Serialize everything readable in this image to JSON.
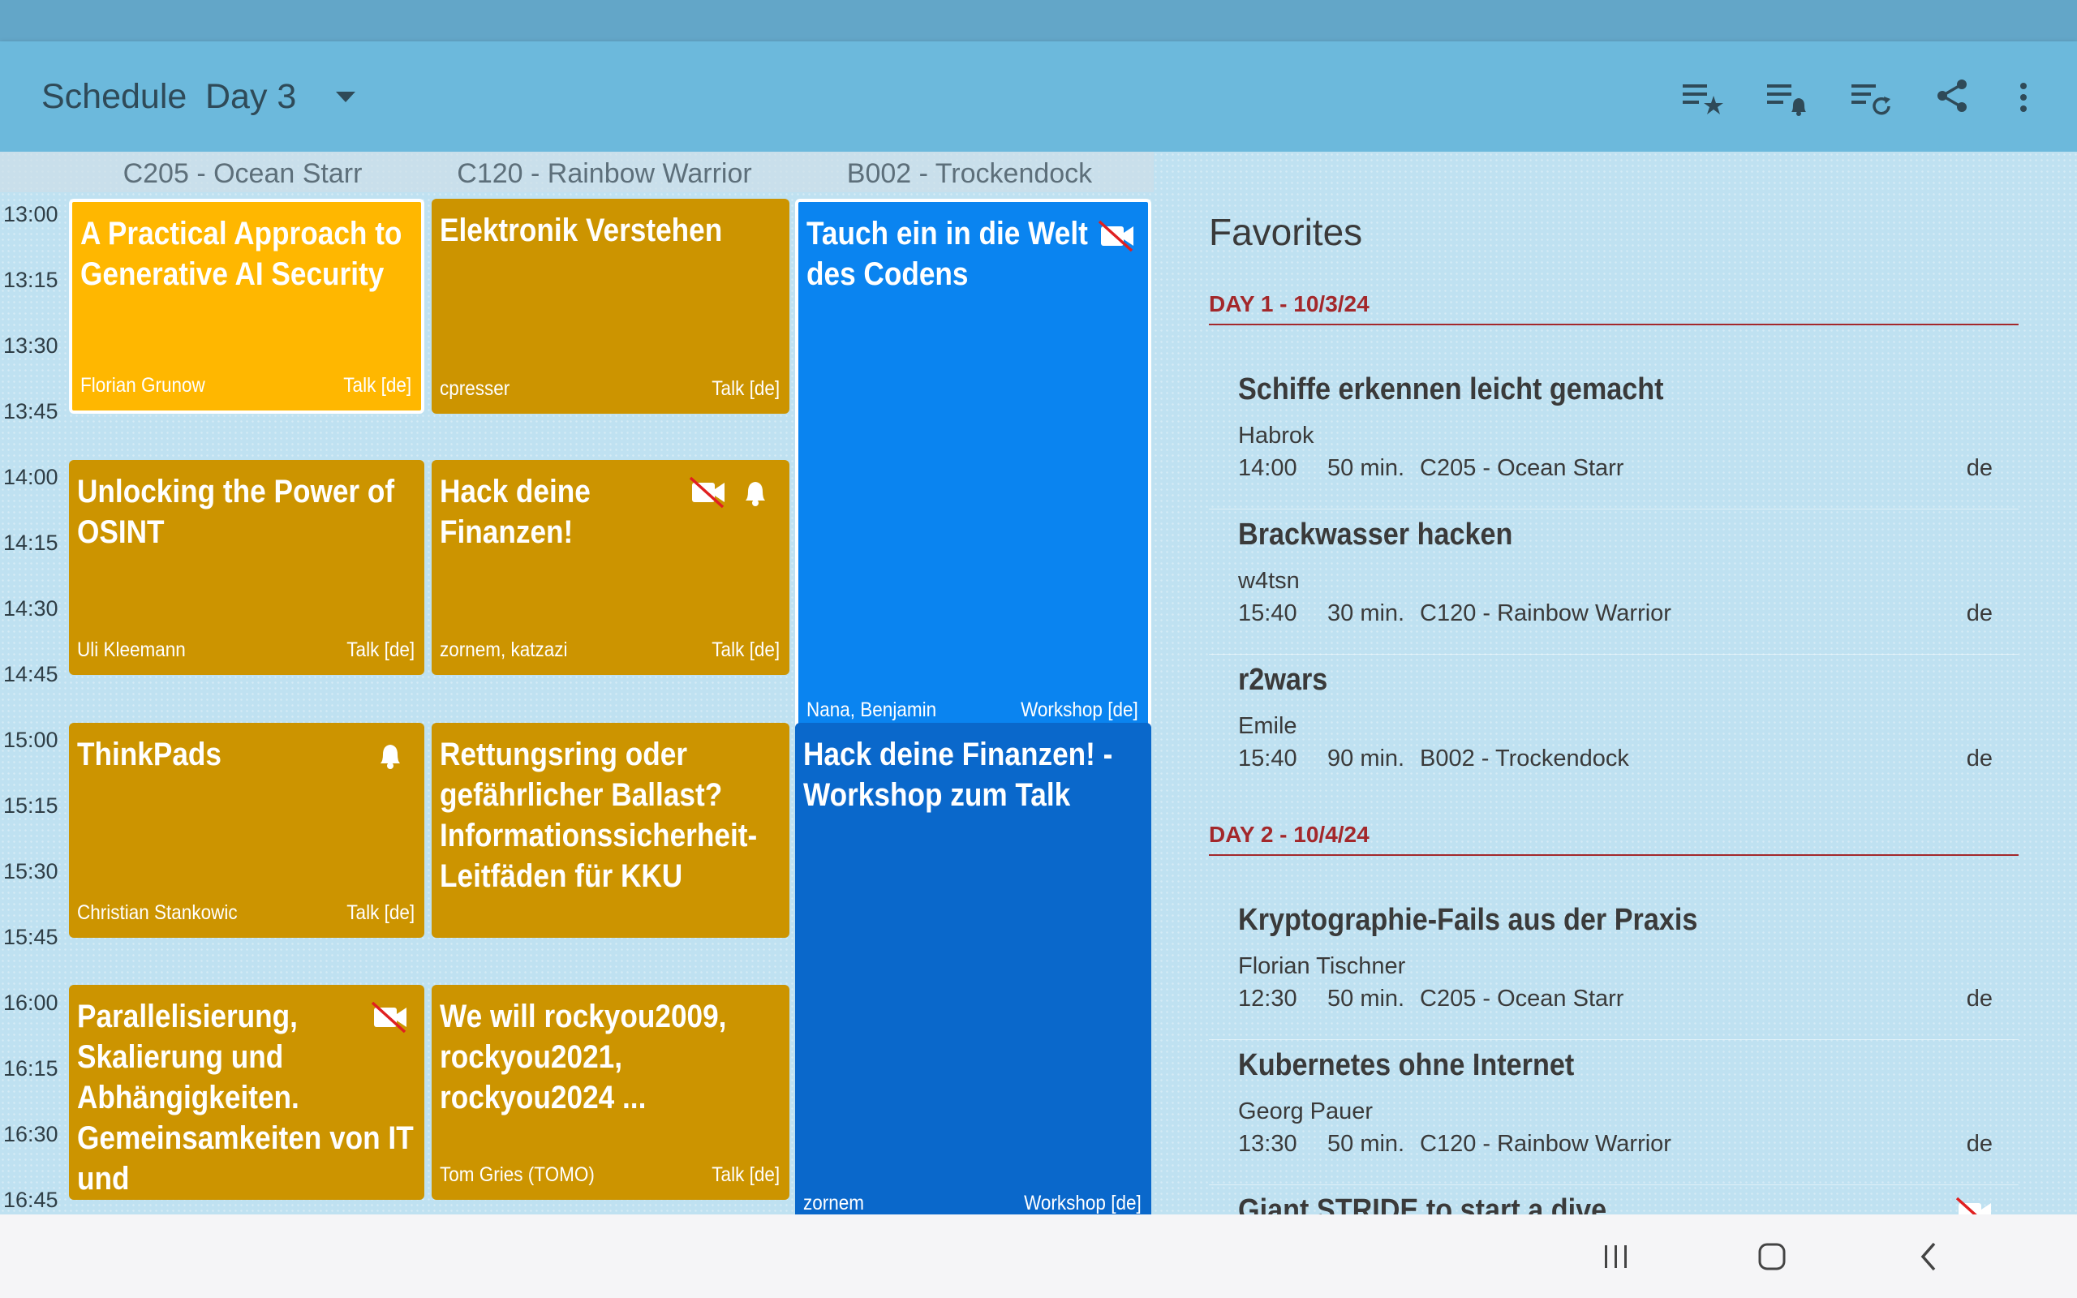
{
  "appbar": {
    "title": "Schedule",
    "day": "Day 3",
    "actions": [
      "starred-list-icon",
      "alarm-list-icon",
      "refresh-list-icon",
      "share-icon",
      "more-vert-icon"
    ]
  },
  "rooms": [
    "C205 - Ocean Starr",
    "C120 - Rainbow Warrior",
    "B002 - Trockendock"
  ],
  "times": [
    "13:00",
    "13:15",
    "13:30",
    "13:45",
    "14:00",
    "14:15",
    "14:30",
    "14:45",
    "15:00",
    "15:15",
    "15:30",
    "15:45",
    "16:00",
    "16:15",
    "16:30",
    "16:45"
  ],
  "events": [
    {
      "title": "A Practical Approach to Generative AI Security",
      "speakers": "Florian Grunow",
      "type": "Talk [de]"
    },
    {
      "title": "Elektronik Verstehen",
      "speakers": "cpresser",
      "type": "Talk [de]"
    },
    {
      "title": "Tauch ein in die Welt des Codens",
      "speakers": "Nana, Benjamin",
      "type": "Workshop [de]"
    },
    {
      "title": "Unlocking the Power of OSINT",
      "speakers": "Uli Kleemann",
      "type": "Talk [de]"
    },
    {
      "title": "Hack deine Finanzen!",
      "speakers": "zornem, katzazi",
      "type": "Talk [de]"
    },
    {
      "title": "ThinkPads",
      "speakers": "Christian Stankowic",
      "type": "Talk [de]"
    },
    {
      "title": "Rettungsring oder gefährlicher Ballast? Informationssicherheit-Leitfäden für KKU",
      "speakers": "",
      "type": ""
    },
    {
      "title": "Hack deine Finanzen! - Workshop zum Talk",
      "speakers": "zornem",
      "type": "Workshop [de]"
    },
    {
      "title": "Parallelisierung, Skalierung und Abhängigkeiten. Gemeinsamkeiten von IT und",
      "speakers": "",
      "type": ""
    },
    {
      "title": "We will rockyou2009, rockyou2021, rockyou2024 ...",
      "speakers": "Tom Gries (TOMO)",
      "type": "Talk [de]"
    }
  ],
  "favorites": {
    "heading": "Favorites",
    "days": [
      {
        "label": "DAY 1 - 10/3/24",
        "items": [
          {
            "title": "Schiffe erkennen leicht gemacht",
            "speaker": "Habrok",
            "time": "14:00",
            "duration": "50 min.",
            "room": "C205 - Ocean Starr",
            "lang": "de"
          },
          {
            "title": "Brackwasser hacken",
            "speaker": "w4tsn",
            "time": "15:40",
            "duration": "30 min.",
            "room": "C120 - Rainbow Warrior",
            "lang": "de"
          },
          {
            "title": "r2wars",
            "speaker": "Emile",
            "time": "15:40",
            "duration": "90 min.",
            "room": "B002 - Trockendock",
            "lang": "de"
          }
        ]
      },
      {
        "label": "DAY 2 - 10/4/24",
        "items": [
          {
            "title": "Kryptographie-Fails aus der Praxis",
            "speaker": "Florian Tischner",
            "time": "12:30",
            "duration": "50 min.",
            "room": "C205 - Ocean Starr",
            "lang": "de"
          },
          {
            "title": "Kubernetes ohne Internet",
            "speaker": "Georg Pauer",
            "time": "13:30",
            "duration": "50 min.",
            "room": "C120 - Rainbow Warrior",
            "lang": "de"
          },
          {
            "title": "Giant STRIDE to start a dive",
            "speaker": "",
            "time": "",
            "duration": "",
            "room": "",
            "lang": ""
          }
        ]
      }
    ]
  },
  "colors": {
    "talk": "#cc9400",
    "highlighted_talk": "#ffb700",
    "workshop": "#0a84f0",
    "workshop_dark": "#0a68cb",
    "day_header": "#a3282b"
  },
  "navbar": [
    "recent-apps-icon",
    "home-icon",
    "back-icon"
  ]
}
